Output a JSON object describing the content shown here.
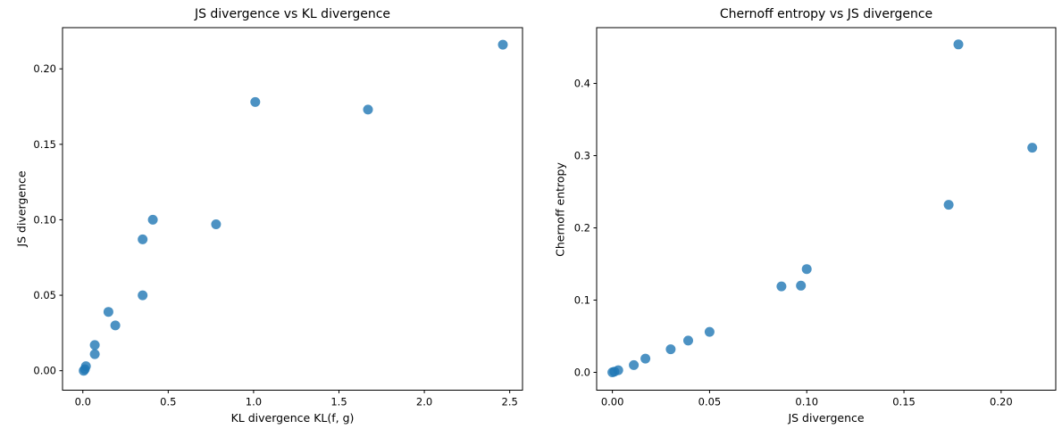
{
  "figure": {
    "background": "#ffffff",
    "text_color": "#000000",
    "dot_color": "#1f77b4",
    "dot_opacity": 0.8,
    "dot_radius": 5.5
  },
  "chart_data": [
    {
      "type": "scatter",
      "title": "JS divergence vs KL divergence",
      "xlabel": "KL divergence KL(f, g)",
      "ylabel": "JS divergence",
      "xlim": [
        -0.119,
        2.575
      ],
      "ylim": [
        -0.0129,
        0.2273
      ],
      "xticks": [
        0.0,
        0.5,
        1.0,
        1.5,
        2.0,
        2.5
      ],
      "xtick_labels": [
        "0.0",
        "0.5",
        "1.0",
        "1.5",
        "2.0",
        "2.5"
      ],
      "yticks": [
        0.0,
        0.05,
        0.1,
        0.15,
        0.2
      ],
      "ytick_labels": [
        "0.00",
        "0.05",
        "0.10",
        "0.15",
        "0.20"
      ],
      "grid": false,
      "legend": null,
      "points": [
        [
          0.005,
          0.0
        ],
        [
          0.012,
          0.001
        ],
        [
          0.018,
          0.003
        ],
        [
          0.07,
          0.011
        ],
        [
          0.07,
          0.017
        ],
        [
          0.15,
          0.039
        ],
        [
          0.19,
          0.03
        ],
        [
          0.35,
          0.05
        ],
        [
          0.35,
          0.087
        ],
        [
          0.41,
          0.1
        ],
        [
          0.78,
          0.097
        ],
        [
          1.01,
          0.178
        ],
        [
          1.67,
          0.173
        ],
        [
          2.46,
          0.216
        ]
      ]
    },
    {
      "type": "scatter",
      "title": "Chernoff entropy vs JS divergence",
      "xlabel": "JS divergence",
      "ylabel": "Chernoff entropy",
      "xlim": [
        -0.0081,
        0.2281
      ],
      "ylim": [
        -0.0247,
        0.4772
      ],
      "xticks": [
        0.0,
        0.05,
        0.1,
        0.15,
        0.2
      ],
      "xtick_labels": [
        "0.00",
        "0.05",
        "0.10",
        "0.15",
        "0.20"
      ],
      "yticks": [
        0.0,
        0.1,
        0.2,
        0.3,
        0.4
      ],
      "ytick_labels": [
        "0.0",
        "0.1",
        "0.2",
        "0.3",
        "0.4"
      ],
      "grid": false,
      "legend": null,
      "points": [
        [
          0.0,
          0.0
        ],
        [
          0.001,
          0.001
        ],
        [
          0.003,
          0.003
        ],
        [
          0.011,
          0.01
        ],
        [
          0.017,
          0.019
        ],
        [
          0.03,
          0.032
        ],
        [
          0.039,
          0.044
        ],
        [
          0.05,
          0.056
        ],
        [
          0.087,
          0.119
        ],
        [
          0.097,
          0.12
        ],
        [
          0.1,
          0.143
        ],
        [
          0.173,
          0.232
        ],
        [
          0.178,
          0.454
        ],
        [
          0.216,
          0.311
        ]
      ]
    }
  ]
}
